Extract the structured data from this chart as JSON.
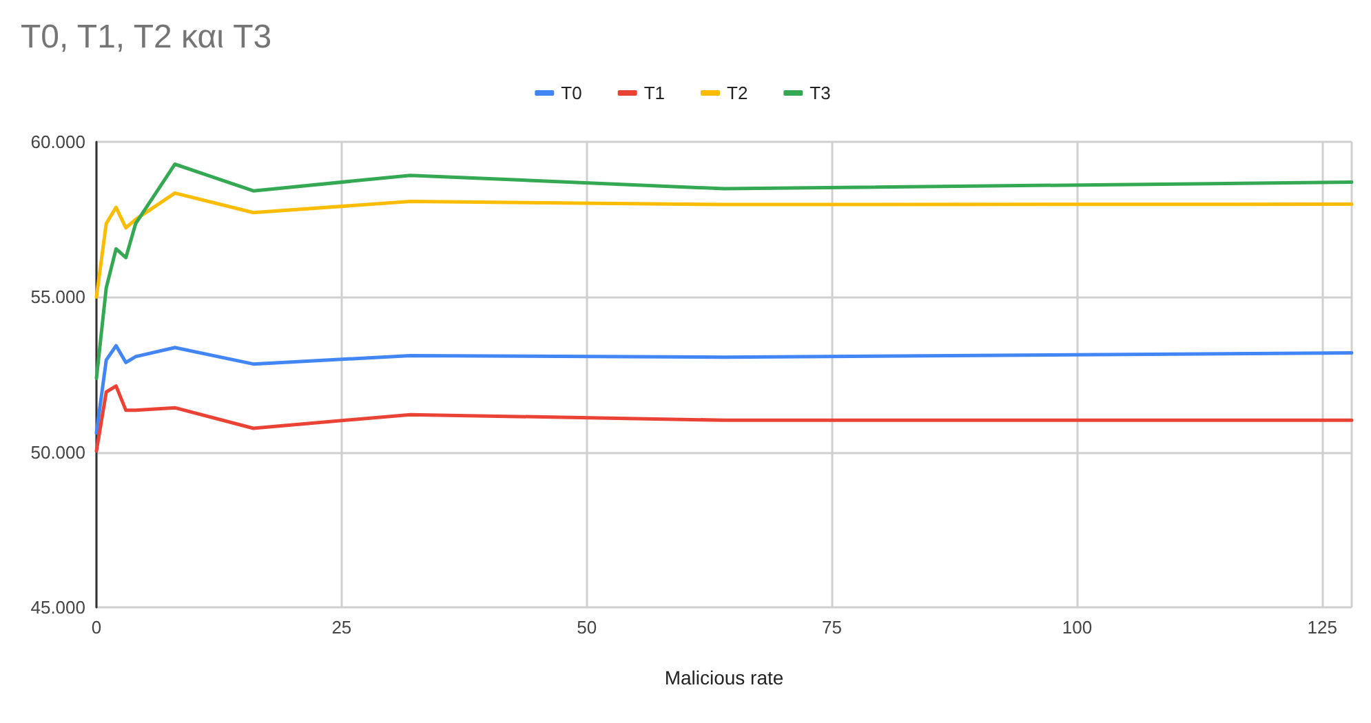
{
  "chart_data": {
    "type": "line",
    "title": "T0, T1, T2 και T3",
    "xlabel": "Malicious rate",
    "x": [
      0,
      1,
      2,
      3,
      4,
      8,
      16,
      32,
      64,
      128
    ],
    "series": [
      {
        "name": "T0",
        "color": "#4285f4",
        "values": [
          50620,
          52970,
          53430,
          52890,
          53080,
          53370,
          52840,
          53110,
          53060,
          53200
        ]
      },
      {
        "name": "T1",
        "color": "#ea4335",
        "values": [
          50040,
          51940,
          52130,
          51350,
          51350,
          51430,
          50770,
          51210,
          51030,
          51030
        ]
      },
      {
        "name": "T2",
        "color": "#fbbc04",
        "values": [
          55000,
          57370,
          57890,
          57230,
          57500,
          58350,
          57720,
          58080,
          57980,
          57990
        ]
      },
      {
        "name": "T3",
        "color": "#34a853",
        "values": [
          52380,
          55300,
          56550,
          56270,
          57370,
          59280,
          58420,
          58920,
          58490,
          58700
        ]
      }
    ],
    "xlim": [
      0,
      128
    ],
    "xticks": [
      0,
      25,
      50,
      75,
      100,
      125
    ],
    "ylim": [
      45000,
      60000
    ],
    "yticks": [
      {
        "value": 45000,
        "label": "45.000"
      },
      {
        "value": 50000,
        "label": "50.000"
      },
      {
        "value": 55000,
        "label": "55.000"
      },
      {
        "value": 60000,
        "label": "60.000"
      }
    ],
    "grid": true,
    "legend": "top",
    "marker": "none",
    "line_style": "solid"
  }
}
